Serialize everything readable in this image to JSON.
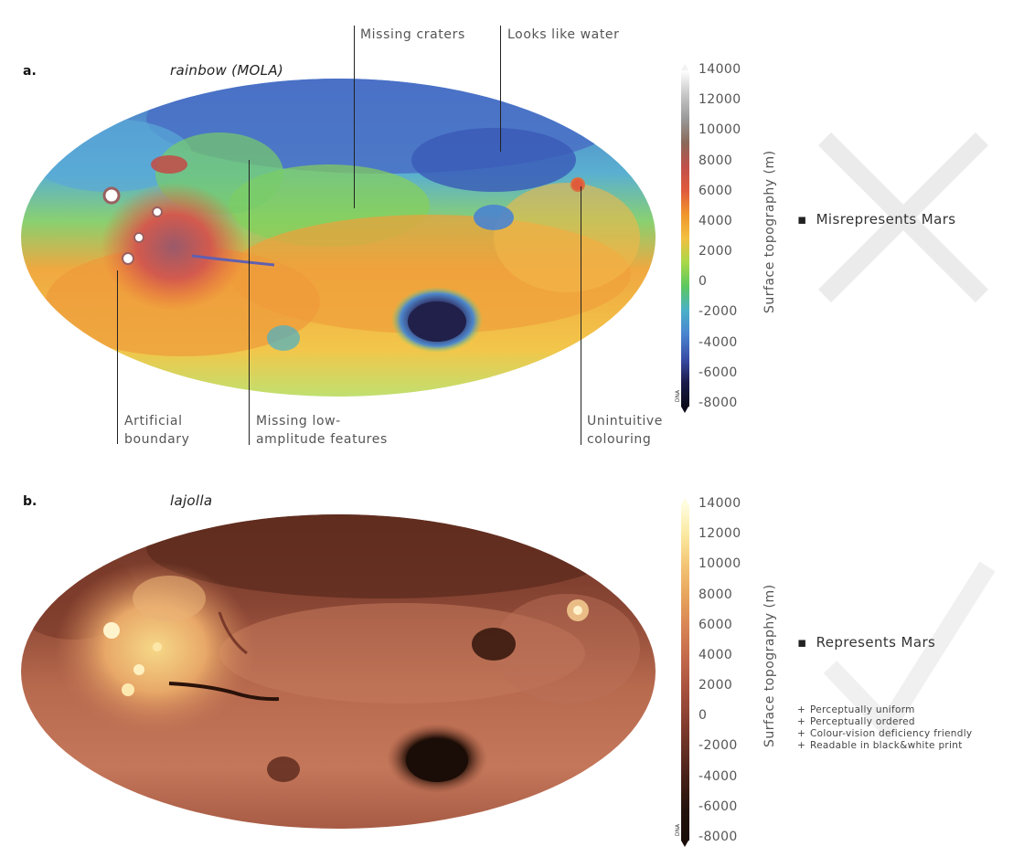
{
  "panel_a": {
    "letter": "a.",
    "title": "rainbow (MOLA)",
    "annotations": {
      "missing_craters": "Missing craters",
      "looks_like_water": "Looks like water",
      "artificial_boundary": [
        "Artificial",
        "boundary"
      ],
      "missing_low_amplitude": [
        "Missing low-",
        "amplitude features"
      ],
      "unintuitive_colouring": [
        "Unintuitive",
        "colouring"
      ]
    },
    "verdict": "Misrepresents Mars",
    "verdict_mark": "cross-icon"
  },
  "panel_b": {
    "letter": "b.",
    "title": "lajolla",
    "verdict": "Represents Mars",
    "verdict_mark": "check-icon",
    "properties": [
      {
        "symbol": "+",
        "text": "Perceptually uniform"
      },
      {
        "symbol": "+",
        "text": "Perceptually ordered"
      },
      {
        "symbol": "+",
        "text": "Colour-vision deficiency friendly"
      },
      {
        "symbol": "+",
        "text": "Readable in black&white print"
      }
    ]
  },
  "colorbar": {
    "label": "Surface topography (m)",
    "ticks": [
      "14000",
      "12000",
      "10000",
      "8000",
      "6000",
      "4000",
      "2000",
      "0",
      "-2000",
      "-4000",
      "-6000",
      "-8000"
    ],
    "tag": "DNA",
    "rainbow_colors": [
      "#ffffff",
      "#c8c8c8",
      "#9a9a9a",
      "#8a6a5a",
      "#c0504a",
      "#e05a3c",
      "#f0962c",
      "#f2c040",
      "#a8d848",
      "#5cc860",
      "#4ab0c8",
      "#4a84d0",
      "#3a4ea8",
      "#1a1a4a",
      "#0a0a1a"
    ],
    "lajolla_colors": [
      "#fffde0",
      "#fbe9a0",
      "#f3c574",
      "#e7a45c",
      "#d88454",
      "#c46a4c",
      "#a9533f",
      "#8a4032",
      "#673024",
      "#452017",
      "#24130d",
      "#1a0c07"
    ]
  }
}
